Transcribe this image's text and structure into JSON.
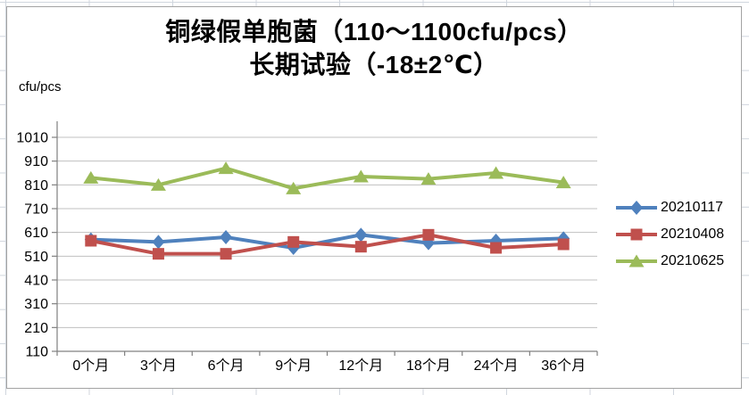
{
  "chart": {
    "title_line1": "铜绿假单胞菌（110～1100cfu/pcs）",
    "title_line2": "长期试验（-18±2℃）",
    "y_unit_label": "cfu/pcs"
  },
  "chart_data": {
    "type": "line",
    "title": "铜绿假单胞菌（110～1100cfu/pcs）长期试验（-18±2℃）",
    "ylabel": "cfu/pcs",
    "xlabel": "",
    "categories": [
      "0个月",
      "3个月",
      "6个月",
      "9个月",
      "12个月",
      "18个月",
      "24个月",
      "36个月"
    ],
    "series": [
      {
        "name": "20210117",
        "color": "#4F81BD",
        "marker": "diamond",
        "values": [
          580,
          570,
          590,
          545,
          600,
          565,
          575,
          585
        ]
      },
      {
        "name": "20210408",
        "color": "#C0504D",
        "marker": "square",
        "values": [
          575,
          520,
          520,
          570,
          550,
          600,
          545,
          560
        ]
      },
      {
        "name": "20210625",
        "color": "#9BBB59",
        "marker": "triangle",
        "values": [
          840,
          810,
          880,
          795,
          845,
          835,
          860,
          820
        ]
      }
    ],
    "ylim": [
      110,
      1010
    ],
    "yticks": [
      1010,
      910,
      810,
      710,
      610,
      510,
      410,
      310,
      210,
      110
    ],
    "grid": true,
    "legend_position": "right",
    "gridline_color": "#C0C0C0",
    "axis_color": "#808080",
    "tick_label_color": "#000000"
  }
}
